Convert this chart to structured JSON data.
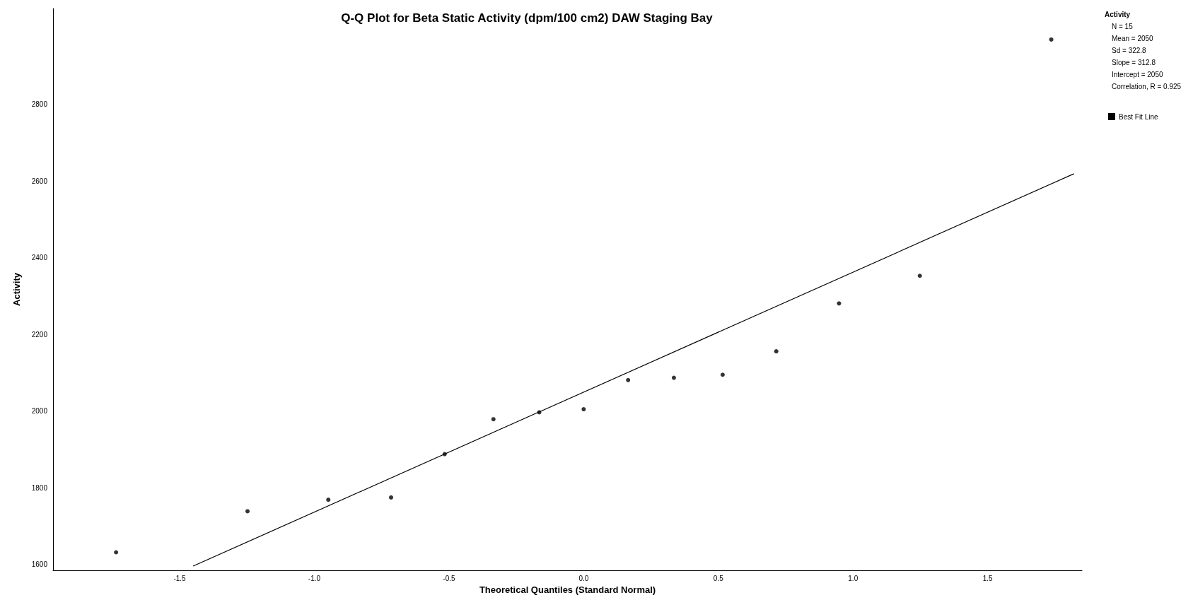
{
  "chart_data": {
    "type": "scatter",
    "title": "Q-Q Plot for Beta Static Activity (dpm/100 cm2) DAW Staging Bay",
    "xlabel": "Theoretical Quantiles (Standard Normal)",
    "ylabel": "Activity",
    "legend_title": "Activity",
    "annotations": [
      "N = 15",
      "Mean = 2050",
      "Sd = 322.8",
      "Slope = 312.8",
      "Intercept = 2050",
      "Correlation, R = 0.925"
    ],
    "series": [
      {
        "color": "#000000",
        "marker": "circle",
        "x": [
          -1.736,
          -1.248,
          -0.948,
          -0.715,
          -0.516,
          -0.335,
          -0.165,
          0,
          0.165,
          0.335,
          0.516,
          0.715,
          0.948,
          1.248,
          1.736
        ],
        "values": [
          1632,
          1739,
          1769,
          1775,
          1888,
          1979,
          1997,
          2005,
          2081,
          2087,
          2095,
          2156,
          2281,
          2353,
          2969
        ]
      },
      {
        "type": "line",
        "name": "Best Fit Line",
        "color": "#000000",
        "marker": "none",
        "x": [
          -1.45,
          1.82
        ],
        "values": [
          1596,
          2619
        ]
      }
    ],
    "line_style": "solid",
    "grid": false,
    "legend": "right",
    "xlim": [
      -1.97,
      1.85
    ],
    "xticks": [
      {
        "value": -1.5,
        "label": "-1.5"
      },
      {
        "value": -1,
        "label": "-1.0"
      },
      {
        "value": -0.5,
        "label": "-0.5"
      },
      {
        "value": 0,
        "label": "0.0"
      },
      {
        "value": 0.5,
        "label": "0.5"
      },
      {
        "value": 1,
        "label": "1.0"
      },
      {
        "value": 1.5,
        "label": "1.5"
      }
    ],
    "ylim": [
      1585,
      3050
    ],
    "yticks": [
      1600,
      1800,
      2000,
      2200,
      2400,
      2600,
      2800
    ]
  }
}
